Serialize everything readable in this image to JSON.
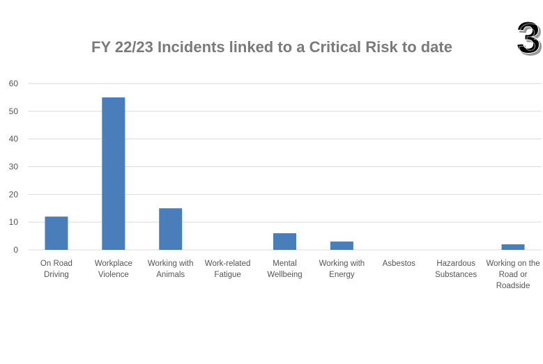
{
  "chart_data": {
    "type": "bar",
    "title": "FY 22/23 Incidents linked to a Critical Risk to date",
    "badge": "3",
    "categories": [
      "On Road Driving",
      "Workplace Violence",
      "Working with Animals",
      "Work-related Fatigue",
      "Mental Wellbeing",
      "Working with Energy",
      "Asbestos",
      "Hazardous Substances",
      "Working on the Road or Roadside"
    ],
    "values": [
      12,
      55,
      15,
      0,
      6,
      3,
      0,
      0,
      2
    ],
    "color": "#4a7ebb",
    "ylim": [
      0,
      60
    ],
    "yticks": [
      0,
      10,
      20,
      30,
      40,
      50,
      60
    ],
    "grid": true
  }
}
